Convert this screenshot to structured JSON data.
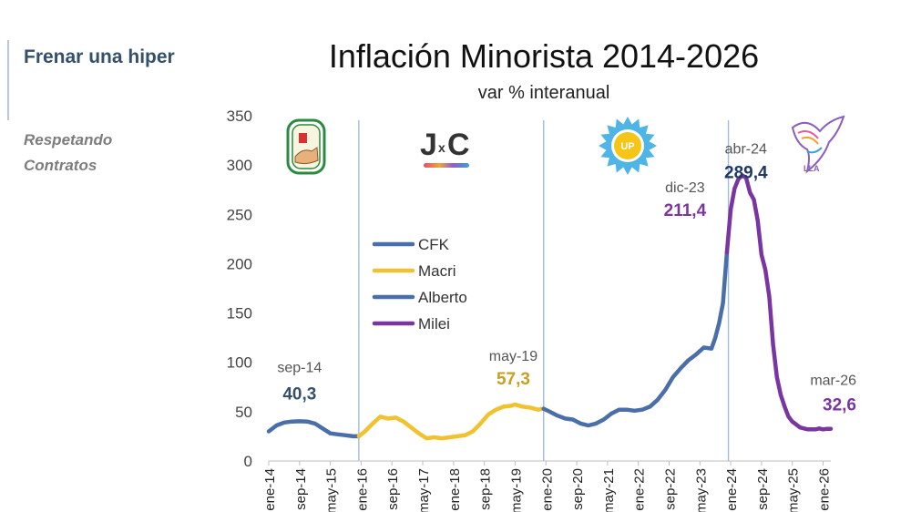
{
  "sidebar": {
    "title": "Frenar una hiper",
    "subtitle": "Respetando Contratos"
  },
  "chart_data": {
    "type": "line",
    "title": "Inflación Minorista 2014-2026",
    "subtitle": "var % interanual",
    "ylim": [
      0,
      350
    ],
    "yticks": [
      0,
      50,
      100,
      150,
      200,
      250,
      300,
      350
    ],
    "xlim": [
      2014.0,
      2026.167
    ],
    "xticks": [
      {
        "x": 2014.0,
        "label": "ene-14"
      },
      {
        "x": 2014.667,
        "label": "sep-14"
      },
      {
        "x": 2015.333,
        "label": "may-15"
      },
      {
        "x": 2016.0,
        "label": "ene-16"
      },
      {
        "x": 2016.667,
        "label": "sep-16"
      },
      {
        "x": 2017.333,
        "label": "may-17"
      },
      {
        "x": 2018.0,
        "label": "ene-18"
      },
      {
        "x": 2018.667,
        "label": "sep-18"
      },
      {
        "x": 2019.333,
        "label": "may-19"
      },
      {
        "x": 2020.0,
        "label": "ene-20"
      },
      {
        "x": 2020.667,
        "label": "sep-20"
      },
      {
        "x": 2021.333,
        "label": "may-21"
      },
      {
        "x": 2022.0,
        "label": "ene-22"
      },
      {
        "x": 2022.667,
        "label": "sep-22"
      },
      {
        "x": 2023.333,
        "label": "may-23"
      },
      {
        "x": 2024.0,
        "label": "ene-24"
      },
      {
        "x": 2024.667,
        "label": "sep-24"
      },
      {
        "x": 2025.333,
        "label": "may-25"
      },
      {
        "x": 2026.0,
        "label": "ene-26"
      }
    ],
    "period_dividers": [
      2015.95,
      2019.95,
      2023.95
    ],
    "legend": [
      {
        "name": "CFK",
        "color": "#4a6fa8"
      },
      {
        "name": "Macri",
        "color": "#f0c230"
      },
      {
        "name": "Alberto",
        "color": "#4a6fa8"
      },
      {
        "name": "Milei",
        "color": "#7a35a0"
      }
    ],
    "series": [
      {
        "name": "CFK",
        "color": "#4a6fa8",
        "points": [
          [
            2014.0,
            30
          ],
          [
            2014.167,
            36
          ],
          [
            2014.333,
            39
          ],
          [
            2014.5,
            40
          ],
          [
            2014.667,
            40.3
          ],
          [
            2014.833,
            40
          ],
          [
            2015.0,
            38
          ],
          [
            2015.167,
            33
          ],
          [
            2015.333,
            28
          ],
          [
            2015.5,
            27
          ],
          [
            2015.667,
            26
          ],
          [
            2015.833,
            25
          ],
          [
            2015.95,
            25
          ]
        ]
      },
      {
        "name": "Macri",
        "color": "#f0c230",
        "points": [
          [
            2015.95,
            25
          ],
          [
            2016.083,
            30
          ],
          [
            2016.25,
            38
          ],
          [
            2016.417,
            45
          ],
          [
            2016.583,
            43
          ],
          [
            2016.75,
            44
          ],
          [
            2016.917,
            40
          ],
          [
            2017.083,
            34
          ],
          [
            2017.25,
            28
          ],
          [
            2017.417,
            23
          ],
          [
            2017.583,
            24
          ],
          [
            2017.75,
            23
          ],
          [
            2017.917,
            24
          ],
          [
            2018.083,
            25
          ],
          [
            2018.25,
            26
          ],
          [
            2018.417,
            30
          ],
          [
            2018.583,
            38
          ],
          [
            2018.75,
            47
          ],
          [
            2018.917,
            52
          ],
          [
            2019.083,
            55
          ],
          [
            2019.25,
            56
          ],
          [
            2019.333,
            57.3
          ],
          [
            2019.5,
            55
          ],
          [
            2019.667,
            54
          ],
          [
            2019.833,
            52
          ],
          [
            2019.95,
            53
          ]
        ]
      },
      {
        "name": "Alberto",
        "color": "#4a6fa8",
        "points": [
          [
            2019.95,
            53
          ],
          [
            2020.083,
            50
          ],
          [
            2020.25,
            46
          ],
          [
            2020.417,
            43
          ],
          [
            2020.583,
            42
          ],
          [
            2020.75,
            38
          ],
          [
            2020.917,
            36
          ],
          [
            2021.083,
            38
          ],
          [
            2021.25,
            42
          ],
          [
            2021.417,
            48
          ],
          [
            2021.583,
            52
          ],
          [
            2021.75,
            52
          ],
          [
            2021.917,
            51
          ],
          [
            2022.083,
            52
          ],
          [
            2022.25,
            55
          ],
          [
            2022.417,
            62
          ],
          [
            2022.583,
            72
          ],
          [
            2022.75,
            85
          ],
          [
            2022.917,
            94
          ],
          [
            2023.083,
            102
          ],
          [
            2023.25,
            108
          ],
          [
            2023.417,
            115
          ],
          [
            2023.583,
            114
          ],
          [
            2023.667,
            125
          ],
          [
            2023.75,
            140
          ],
          [
            2023.833,
            160
          ],
          [
            2023.917,
            211.4
          ]
        ]
      },
      {
        "name": "Milei",
        "color": "#7a35a0",
        "points": [
          [
            2023.917,
            211.4
          ],
          [
            2024.0,
            255
          ],
          [
            2024.083,
            276
          ],
          [
            2024.167,
            286
          ],
          [
            2024.25,
            289.4
          ],
          [
            2024.333,
            287
          ],
          [
            2024.417,
            272
          ],
          [
            2024.5,
            265
          ],
          [
            2024.583,
            244
          ],
          [
            2024.667,
            209
          ],
          [
            2024.75,
            194
          ],
          [
            2024.833,
            167
          ],
          [
            2024.917,
            118
          ],
          [
            2025.0,
            85
          ],
          [
            2025.083,
            67
          ],
          [
            2025.167,
            55
          ],
          [
            2025.25,
            45
          ],
          [
            2025.333,
            40
          ],
          [
            2025.5,
            34
          ],
          [
            2025.667,
            32
          ],
          [
            2025.833,
            32
          ],
          [
            2025.917,
            33
          ],
          [
            2026.0,
            32
          ],
          [
            2026.083,
            32.6
          ],
          [
            2026.167,
            32.6
          ]
        ]
      }
    ],
    "annotations": [
      {
        "date": "sep-14",
        "value": "40,3",
        "x": 2014.667,
        "y": 40.3,
        "color": "#34506a"
      },
      {
        "date": "may-19",
        "value": "57,3",
        "x": 2019.333,
        "y": 57.3,
        "color": "#c5a022"
      },
      {
        "date": "dic-23",
        "value": "211,4",
        "x": 2023.917,
        "y": 211.4,
        "color": "#7a35a0"
      },
      {
        "date": "abr-24",
        "value": "289,4",
        "x": 2024.25,
        "y": 289.4,
        "color": "#1f3864"
      },
      {
        "date": "mar-26",
        "value": "32,6",
        "x": 2026.167,
        "y": 32.6,
        "color": "#7a35a0"
      }
    ],
    "period_labels": [
      {
        "label": "J",
        "sub": "x",
        "label2": "C"
      }
    ]
  }
}
